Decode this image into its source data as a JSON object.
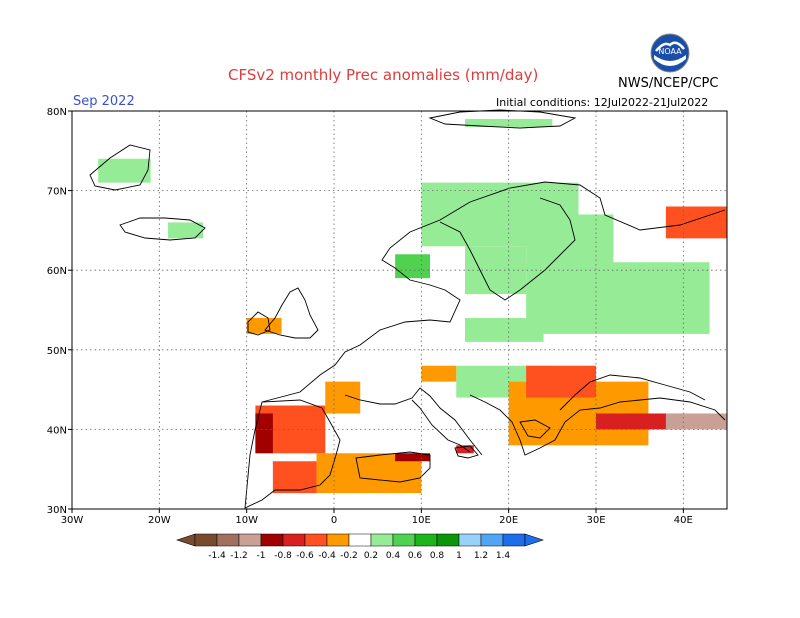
{
  "title": "CFSv2 monthly Prec anomalies (mm/day)",
  "month": "Sep 2022",
  "initial_conditions": "Initial conditions: 12Jul2022-21Jul2022",
  "organization": "NWS/NCEP/CPC",
  "logo_text": "NOAA",
  "map": {
    "lon_min": -30,
    "lon_max": 45,
    "lat_min": 30,
    "lat_max": 80,
    "lon_ticks": [
      {
        "value": -30,
        "label": "30W"
      },
      {
        "value": -20,
        "label": "20W"
      },
      {
        "value": -10,
        "label": "10W"
      },
      {
        "value": 0,
        "label": "0"
      },
      {
        "value": 10,
        "label": "10E"
      },
      {
        "value": 20,
        "label": "20E"
      },
      {
        "value": 30,
        "label": "30E"
      },
      {
        "value": 40,
        "label": "40E"
      }
    ],
    "lat_ticks": [
      {
        "value": 30,
        "label": "30N"
      },
      {
        "value": 40,
        "label": "40N"
      },
      {
        "value": 50,
        "label": "50N"
      },
      {
        "value": 60,
        "label": "60N"
      },
      {
        "value": 70,
        "label": "70N"
      },
      {
        "value": 80,
        "label": "80N"
      }
    ],
    "grid": true
  },
  "colors": {
    "-1.4": "#7a4a2e",
    "-1.2": "#a07060",
    "-1": "#c8a096",
    "-0.8": "#a00000",
    "-0.6": "#d82020",
    "-0.4": "#ff5020",
    "-0.2": "#ff9900",
    "0.2": "#96eb96",
    "0.4": "#50d250",
    "0.6": "#1eb41e",
    "0.8": "#0a960a",
    "1": "#96d2fa",
    "1.2": "#50a5f5",
    "1.4": "#1e6eeb"
  },
  "anomaly_patches": [
    {
      "region": "Scandinavia north",
      "level": "0.2",
      "lon": [
        10,
        28
      ],
      "lat": [
        63,
        71
      ]
    },
    {
      "region": "Scandinavia south",
      "level": "0.2",
      "lon": [
        15,
        22
      ],
      "lat": [
        57,
        63
      ]
    },
    {
      "region": "Norway coast",
      "level": "0.4",
      "lon": [
        7,
        11
      ],
      "lat": [
        59,
        62
      ]
    },
    {
      "region": "Finland",
      "level": "0.2",
      "lon": [
        22,
        32
      ],
      "lat": [
        60,
        67
      ]
    },
    {
      "region": "Baltic / W Russia",
      "level": "0.2",
      "lon": [
        22,
        43
      ],
      "lat": [
        52,
        61
      ]
    },
    {
      "region": "Poland",
      "level": "0.2",
      "lon": [
        15,
        24
      ],
      "lat": [
        51,
        54
      ]
    },
    {
      "region": "Balkans north",
      "level": "0.2",
      "lon": [
        14,
        25
      ],
      "lat": [
        44,
        48
      ]
    },
    {
      "region": "Greenland",
      "level": "0.2",
      "lon": [
        -27,
        -21
      ],
      "lat": [
        71,
        74
      ]
    },
    {
      "region": "Iceland",
      "level": "0.2",
      "lon": [
        -19,
        -15
      ],
      "lat": [
        64,
        66
      ]
    },
    {
      "region": "Svalbard",
      "level": "0.2",
      "lon": [
        15,
        25
      ],
      "lat": [
        78,
        79
      ]
    },
    {
      "region": "Iberia",
      "level": "-0.4",
      "lon": [
        -9,
        -1
      ],
      "lat": [
        37,
        43
      ]
    },
    {
      "region": "Portugal",
      "level": "-0.8",
      "lon": [
        -9,
        -7
      ],
      "lat": [
        37,
        42
      ]
    },
    {
      "region": "Algeria coast",
      "level": "-0.2",
      "lon": [
        -2,
        10
      ],
      "lat": [
        32,
        37
      ]
    },
    {
      "region": "Tunisia",
      "level": "-0.8",
      "lon": [
        7,
        11
      ],
      "lat": [
        36,
        37
      ]
    },
    {
      "region": "Morocco",
      "level": "-0.4",
      "lon": [
        -7,
        -2
      ],
      "lat": [
        32,
        36
      ]
    },
    {
      "region": "Greece / Turkey",
      "level": "-0.2",
      "lon": [
        20,
        36
      ],
      "lat": [
        38,
        46
      ]
    },
    {
      "region": "Black Sea north",
      "level": "-0.4",
      "lon": [
        22,
        30
      ],
      "lat": [
        44,
        48
      ]
    },
    {
      "region": "Turkey north",
      "level": "-0.6",
      "lon": [
        30,
        40
      ],
      "lat": [
        40,
        42
      ]
    },
    {
      "region": "Caucasus",
      "level": "-1",
      "lon": [
        38,
        45
      ],
      "lat": [
        40,
        42
      ]
    },
    {
      "region": "NW Russia",
      "level": "-0.4",
      "lon": [
        38,
        45
      ],
      "lat": [
        64,
        68
      ]
    },
    {
      "region": "Ireland",
      "level": "-0.2",
      "lon": [
        -10,
        -6
      ],
      "lat": [
        52,
        54
      ]
    },
    {
      "region": "France south",
      "level": "-0.2",
      "lon": [
        -1,
        3
      ],
      "lat": [
        42,
        46
      ]
    },
    {
      "region": "Alps",
      "level": "-0.2",
      "lon": [
        10,
        14
      ],
      "lat": [
        46,
        48
      ]
    },
    {
      "region": "Sicily",
      "level": "-0.6",
      "lon": [
        14,
        16
      ],
      "lat": [
        37,
        38
      ]
    }
  ]
}
